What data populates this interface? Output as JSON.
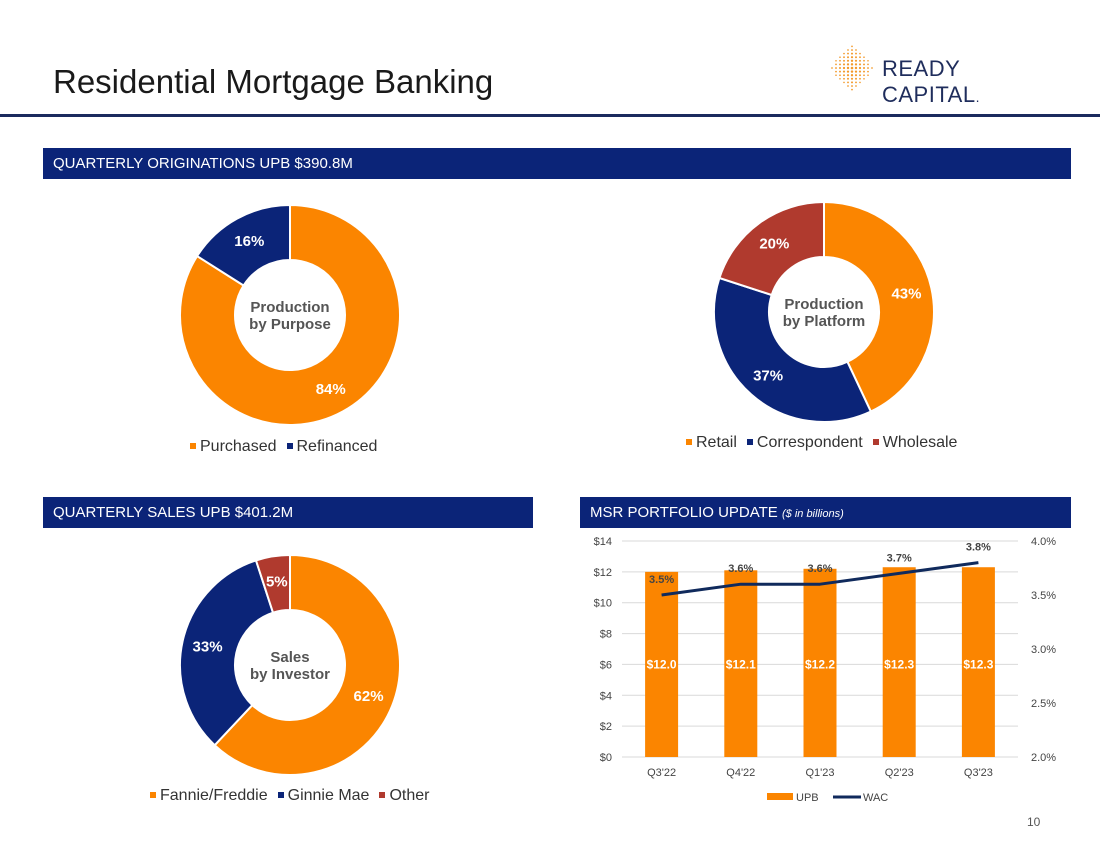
{
  "page": {
    "title": "Residential Mortgage Banking",
    "logo_text": "READY CAPITAL",
    "logo_mark": ".",
    "page_number": "10"
  },
  "sections": {
    "originations": "QUARTERLY ORIGINATIONS UPB $390.8M",
    "sales": "QUARTERLY SALES UPB $401.2M",
    "msr": "MSR PORTFOLIO UPDATE",
    "msr_sub": "($ in billions)"
  },
  "colors": {
    "orange": "#fb8500",
    "navy": "#0b2478",
    "red": "#b03a2e",
    "line": "#102a5c"
  },
  "chart_data": [
    {
      "type": "pie",
      "title": "Production by Purpose",
      "center_label": [
        "Production",
        "by Purpose"
      ],
      "slices": [
        {
          "label": "Purchased",
          "value": 84,
          "text": "84%",
          "color": "#fb8500"
        },
        {
          "label": "Refinanced",
          "value": 16,
          "text": "16%",
          "color": "#0b2478"
        }
      ]
    },
    {
      "type": "pie",
      "title": "Production by Platform",
      "center_label": [
        "Production",
        "by Platform"
      ],
      "slices": [
        {
          "label": "Retail",
          "value": 43,
          "text": "43%",
          "color": "#fb8500"
        },
        {
          "label": "Correspondent",
          "value": 37,
          "text": "37%",
          "color": "#0b2478"
        },
        {
          "label": "Wholesale",
          "value": 20,
          "text": "20%",
          "color": "#b03a2e"
        }
      ]
    },
    {
      "type": "pie",
      "title": "Sales by Investor",
      "center_label": [
        "Sales",
        "by Investor"
      ],
      "slices": [
        {
          "label": "Fannie/Freddie",
          "value": 62,
          "text": "62%",
          "color": "#fb8500"
        },
        {
          "label": "Ginnie Mae",
          "value": 33,
          "text": "33%",
          "color": "#0b2478"
        },
        {
          "label": "Other",
          "value": 5,
          "text": "5%",
          "color": "#b03a2e"
        }
      ]
    },
    {
      "type": "bar",
      "title": "MSR PORTFOLIO UPDATE",
      "categories": [
        "Q3'22",
        "Q4'22",
        "Q1'23",
        "Q2'23",
        "Q3'23"
      ],
      "series": [
        {
          "name": "UPB",
          "axis": "left",
          "values": [
            12.0,
            12.1,
            12.2,
            12.3,
            12.3
          ],
          "labels": [
            "$12.0",
            "$12.1",
            "$12.2",
            "$12.3",
            "$12.3"
          ],
          "color": "#fb8500"
        },
        {
          "name": "WAC",
          "axis": "right",
          "type": "line",
          "values": [
            3.5,
            3.6,
            3.6,
            3.7,
            3.8
          ],
          "labels": [
            "3.5%",
            "3.6%",
            "3.6%",
            "3.7%",
            "3.8%"
          ],
          "color": "#102a5c"
        }
      ],
      "ylim": [
        0,
        14
      ],
      "yticks": [
        "$0",
        "$2",
        "$4",
        "$6",
        "$8",
        "$10",
        "$12",
        "$14"
      ],
      "y2lim": [
        2.0,
        4.0
      ],
      "y2ticks": [
        "2.0%",
        "2.5%",
        "3.0%",
        "3.5%",
        "4.0%"
      ],
      "legend": [
        "UPB",
        "WAC"
      ]
    }
  ]
}
